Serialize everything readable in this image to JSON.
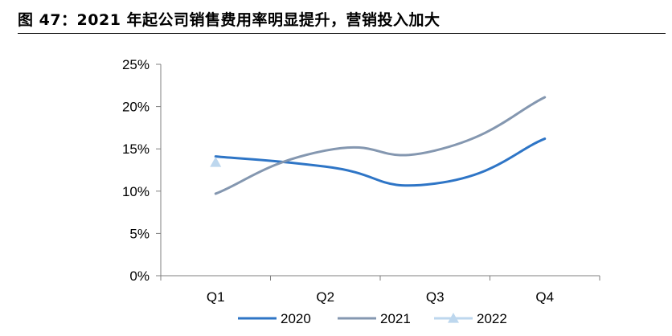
{
  "figure": {
    "title": "图 47：2021 年起公司销售费用率明显提升，营销投入加大"
  },
  "chart_data": {
    "type": "line",
    "categories": [
      "Q1",
      "Q2",
      "Q3",
      "Q4"
    ],
    "y_ticks": [
      "0%",
      "5%",
      "10%",
      "15%",
      "20%",
      "25%"
    ],
    "ylim": [
      0,
      25
    ],
    "grid": false,
    "legend_position": "bottom",
    "series": [
      {
        "name": "2020",
        "values": [
          14.1,
          12.9,
          10.9,
          16.2
        ],
        "color": "#2e75c6",
        "marker": "none"
      },
      {
        "name": "2021",
        "values": [
          9.7,
          14.8,
          14.8,
          21.1
        ],
        "color": "#8497b0",
        "marker": "none"
      },
      {
        "name": "2022",
        "values": [
          13.4,
          null,
          null,
          null
        ],
        "color": "#bdd7ee",
        "marker": "triangle"
      }
    ]
  }
}
